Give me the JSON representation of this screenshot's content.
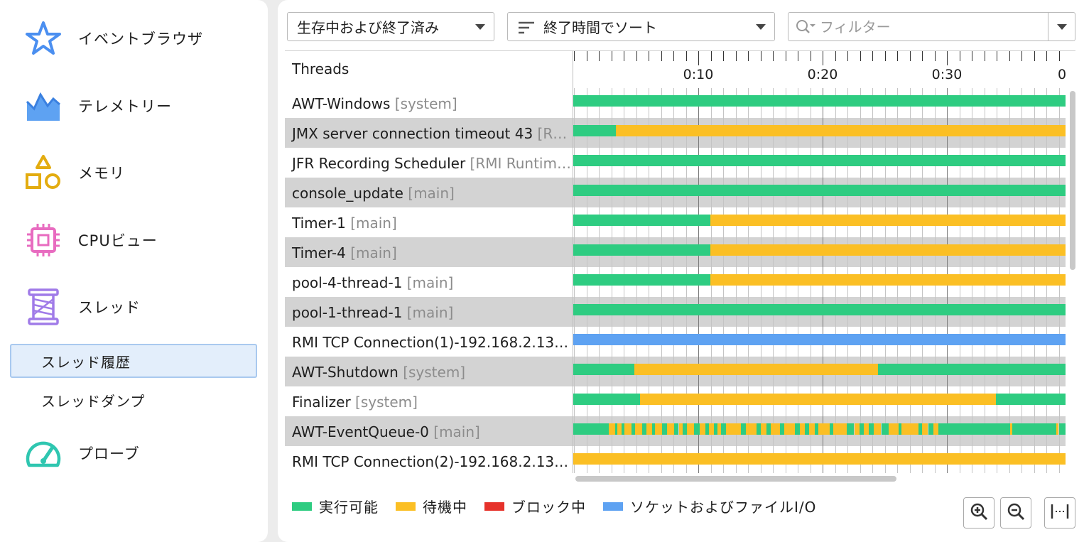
{
  "sidebar": {
    "items": [
      {
        "label": "イベントブラウザ",
        "icon": "star-icon"
      },
      {
        "label": "テレメトリー",
        "icon": "telemetry-chart-icon"
      },
      {
        "label": "メモリ",
        "icon": "shapes-icon"
      },
      {
        "label": "CPUビュー",
        "icon": "cpu-chip-icon"
      },
      {
        "label": "スレッド",
        "icon": "spool-icon"
      },
      {
        "label": "プローブ",
        "icon": "gauge-icon"
      }
    ],
    "thread_subitems": [
      {
        "label": "スレッド履歴",
        "active": true
      },
      {
        "label": "スレッドダンプ",
        "active": false
      }
    ]
  },
  "toolbar": {
    "state_filter": "生存中および終了済み",
    "sort": "終了時間でソート",
    "filter_placeholder": "フィルター"
  },
  "timeline": {
    "header": "Threads",
    "tick_labels": [
      "0:10",
      "0:20",
      "0:30",
      "0"
    ]
  },
  "threads": [
    {
      "name": "AWT-Windows",
      "context": "[system]",
      "segments": [
        [
          0,
          1,
          "runnable"
        ]
      ]
    },
    {
      "name": "JMX server connection timeout 43",
      "context": "[R…",
      "segments": [
        [
          0,
          0.087,
          "runnable"
        ],
        [
          0.087,
          1,
          "waiting"
        ]
      ]
    },
    {
      "name": "JFR Recording Scheduler",
      "context": "[RMI Runtim…",
      "segments": [
        [
          0,
          1,
          "runnable"
        ]
      ]
    },
    {
      "name": "console_update",
      "context": "[main]",
      "segments": [
        [
          0,
          1,
          "runnable"
        ]
      ]
    },
    {
      "name": "Timer-1",
      "context": "[main]",
      "segments": [
        [
          0,
          0.278,
          "runnable"
        ],
        [
          0.278,
          1,
          "waiting"
        ]
      ]
    },
    {
      "name": "Timer-4",
      "context": "[main]",
      "segments": [
        [
          0,
          0.278,
          "runnable"
        ],
        [
          0.278,
          1,
          "waiting"
        ]
      ]
    },
    {
      "name": "pool-4-thread-1",
      "context": "[main]",
      "segments": [
        [
          0,
          0.278,
          "runnable"
        ],
        [
          0.278,
          1,
          "waiting"
        ]
      ]
    },
    {
      "name": "pool-1-thread-1",
      "context": "[main]",
      "segments": [
        [
          0,
          1,
          "runnable"
        ]
      ]
    },
    {
      "name": "RMI TCP Connection(1)-192.168.2.132 …",
      "context": "",
      "segments": [
        [
          0,
          1,
          "socket"
        ]
      ]
    },
    {
      "name": "AWT-Shutdown",
      "context": "[system]",
      "segments": [
        [
          0,
          0.124,
          "runnable"
        ],
        [
          0.124,
          0.618,
          "waiting"
        ],
        [
          0.618,
          1,
          "runnable"
        ]
      ]
    },
    {
      "name": "Finalizer",
      "context": "[system]",
      "segments": [
        [
          0,
          0.135,
          "runnable"
        ],
        [
          0.135,
          0.858,
          "waiting"
        ],
        [
          0.858,
          1,
          "runnable"
        ]
      ]
    },
    {
      "name": "AWT-EventQueue-0",
      "context": "[main]",
      "segments": "mixed"
    },
    {
      "name": "RMI TCP Connection(2)-192.168.2.132 …",
      "context": "",
      "segments": [
        [
          0,
          1,
          "waiting"
        ]
      ]
    }
  ],
  "legend": [
    {
      "label": "実行可能",
      "color": "#2ecc81"
    },
    {
      "label": "待機中",
      "color": "#fbbf24"
    },
    {
      "label": "ブロック中",
      "color": "#e6322b"
    },
    {
      "label": "ソケットおよびファイルI/O",
      "color": "#5ea2f2"
    }
  ],
  "colors": {
    "runnable": "#2ecc81",
    "waiting": "#fbbf24",
    "blocked": "#e6322b",
    "socket": "#5ea2f2"
  },
  "zoom_buttons": [
    "zoom-in-icon",
    "zoom-out-icon",
    "fit-icon"
  ]
}
